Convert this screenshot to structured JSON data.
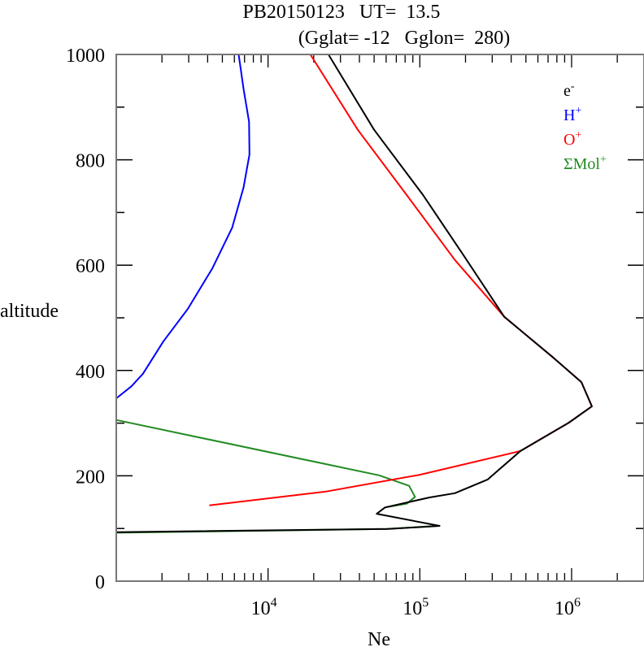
{
  "chart_data": {
    "type": "line",
    "title": "PB20150123   UT=  13.5",
    "subtitle": "(Gglat= -12   Gglon=  280)",
    "xlabel": "Ne",
    "ylabel": "altitude",
    "xscale": "log",
    "xlim": [
      1000,
      3000000
    ],
    "ylim": [
      0,
      1000
    ],
    "yticks": [
      0,
      200,
      400,
      600,
      800,
      1000
    ],
    "xticks": [
      {
        "value": 10000,
        "base": "10",
        "exp": "4"
      },
      {
        "value": 100000,
        "base": "10",
        "exp": "5"
      },
      {
        "value": 1000000,
        "base": "10",
        "exp": "6"
      }
    ],
    "legend_position": "top-right",
    "grid": false,
    "series": [
      {
        "name": "e",
        "sup": "-",
        "color": "#000000",
        "points": [
          [
            1000,
            93
          ],
          [
            62000,
            99
          ],
          [
            135000,
            105
          ],
          [
            52000,
            128
          ],
          [
            59000,
            140
          ],
          [
            116000,
            159
          ],
          [
            170000,
            167
          ],
          [
            280000,
            193
          ],
          [
            460000,
            247
          ],
          [
            960000,
            301
          ],
          [
            1360000,
            332
          ],
          [
            1160000,
            378
          ],
          [
            760000,
            424
          ],
          [
            360000,
            502
          ],
          [
            196000,
            617
          ],
          [
            105000,
            733
          ],
          [
            50000,
            857
          ],
          [
            25000,
            1000
          ]
        ]
      },
      {
        "name": "H",
        "sup": "+",
        "color": "#0000ff",
        "points": [
          [
            1000,
            347
          ],
          [
            1260,
            370
          ],
          [
            1500,
            394
          ],
          [
            2040,
            455
          ],
          [
            2960,
            517
          ],
          [
            4300,
            594
          ],
          [
            5800,
            671
          ],
          [
            6900,
            748
          ],
          [
            7540,
            810
          ],
          [
            7500,
            872
          ],
          [
            6900,
            934
          ],
          [
            6400,
            1000
          ]
        ]
      },
      {
        "name": "O",
        "sup": "+",
        "color": "#ff0000",
        "points": [
          [
            4100,
            144
          ],
          [
            24000,
            170
          ],
          [
            100000,
            202
          ],
          [
            460000,
            247
          ],
          [
            960000,
            301
          ],
          [
            1360000,
            332
          ],
          [
            1160000,
            378
          ],
          [
            760000,
            424
          ],
          [
            360000,
            502
          ],
          [
            170000,
            610
          ],
          [
            82000,
            733
          ],
          [
            39000,
            857
          ],
          [
            19000,
            1000
          ]
        ]
      },
      {
        "name": "ΣMol",
        "sup": "+",
        "color": "#228b22",
        "points": [
          [
            1000,
            306
          ],
          [
            54000,
            201
          ],
          [
            85000,
            181
          ],
          [
            93000,
            160
          ],
          [
            82000,
            147
          ],
          [
            59000,
            140
          ]
        ],
        "points_low": [
          [
            1000,
            92
          ],
          [
            60000,
            99
          ],
          [
            130000,
            105
          ]
        ]
      }
    ]
  }
}
